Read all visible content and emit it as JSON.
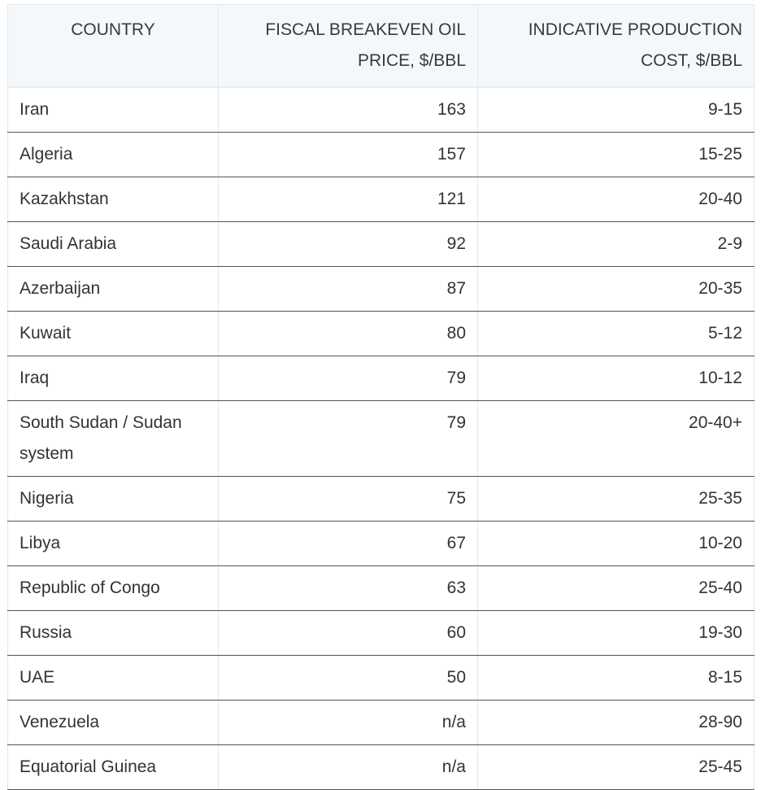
{
  "table": {
    "headers": [
      "COUNTRY",
      "FISCAL BREAKEVEN OIL PRICE, $/BBL",
      "INDICATIVE PRODUCTION COST, $/BBL"
    ],
    "rows": [
      [
        "Iran",
        "163",
        "9-15"
      ],
      [
        "Algeria",
        "157",
        "15-25"
      ],
      [
        "Kazakhstan",
        "121",
        "20-40"
      ],
      [
        "Saudi Arabia",
        "92",
        "2-9"
      ],
      [
        "Azerbaijan",
        "87",
        "20-35"
      ],
      [
        "Kuwait",
        "80",
        "5-12"
      ],
      [
        "Iraq",
        "79",
        "10-12"
      ],
      [
        "South Sudan / Sudan system",
        "79",
        "20-40+"
      ],
      [
        "Nigeria",
        "75",
        "25-35"
      ],
      [
        "Libya",
        "67",
        "10-20"
      ],
      [
        "Republic of Congo",
        "63",
        "25-40"
      ],
      [
        "Russia",
        "60",
        "19-30"
      ],
      [
        "UAE",
        "50",
        "8-15"
      ],
      [
        "Venezuela",
        "n/a",
        "28-90"
      ],
      [
        "Equatorial Guinea",
        "n/a",
        "25-45"
      ]
    ]
  }
}
